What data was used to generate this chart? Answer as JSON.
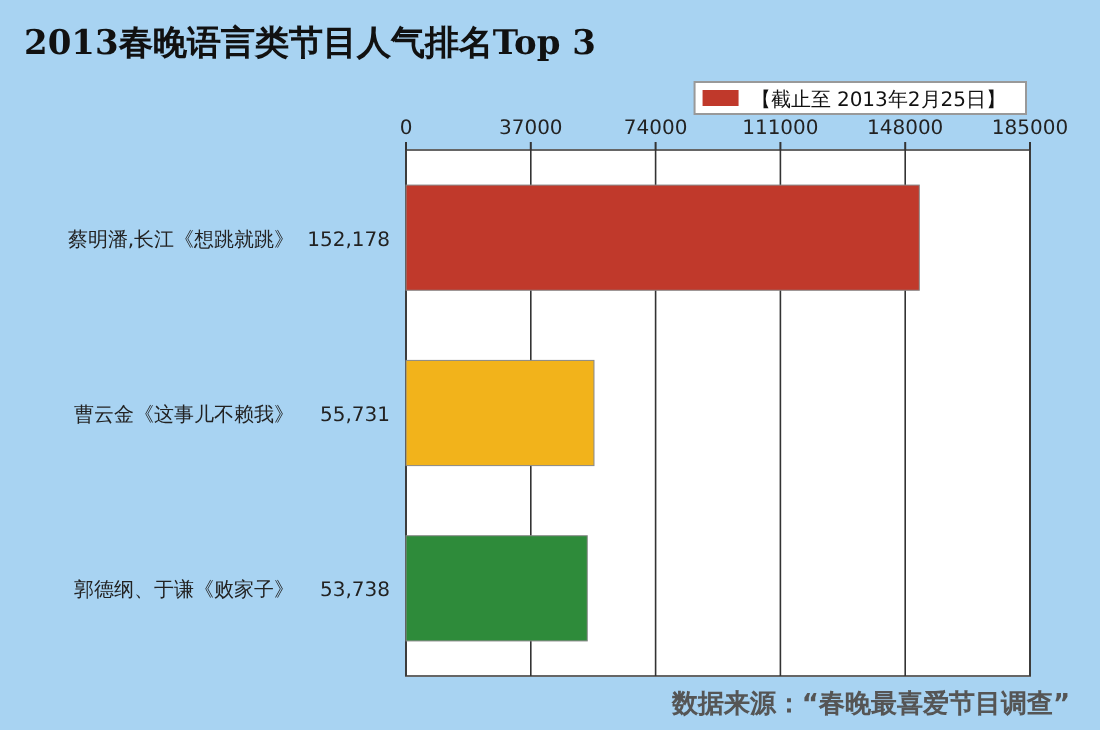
{
  "chart_data": {
    "type": "bar",
    "orientation": "horizontal",
    "title": "2013春晚语言类节目人气排名Top 3",
    "categories": [
      "蔡明潘,长江《想跳就跳》",
      "曹云金《这事儿不赖我》",
      "郭德纲、于谦《败家子》"
    ],
    "series": [
      {
        "name": "【截止至 2013年2月25日】",
        "color": "#c0392b",
        "colors": [
          "#c0392b",
          "#f2b31b",
          "#2e8b3a"
        ],
        "values": [
          152178,
          55731,
          53738
        ],
        "value_labels": [
          "152,178",
          "55,731",
          "53,738"
        ]
      }
    ],
    "xlim": [
      0,
      185000
    ],
    "xticks": [
      0,
      37000,
      74000,
      111000,
      148000,
      185000
    ],
    "grid": "x",
    "legend": "top right",
    "annotations": [
      "数据来源：“春晚最喜爱节目调查”"
    ]
  }
}
